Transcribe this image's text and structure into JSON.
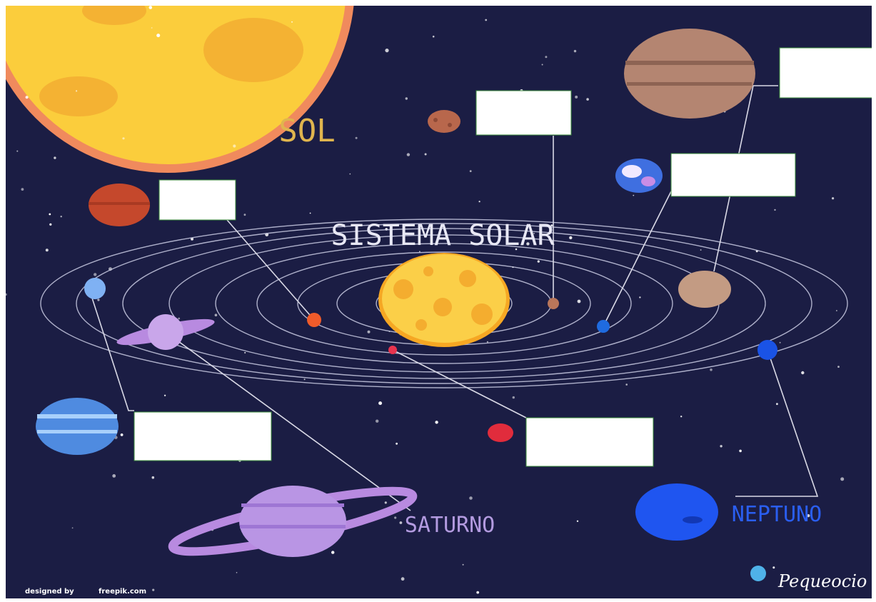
{
  "header": {
    "title": "SISTEMA SOLAR"
  },
  "labels": {
    "sun": "SOL",
    "saturn": "SATURNO",
    "neptune": "NEPTUNO"
  },
  "credit": {
    "prefix": "designed by",
    "site": "freepik.com"
  },
  "brand": "Pequeocio"
}
